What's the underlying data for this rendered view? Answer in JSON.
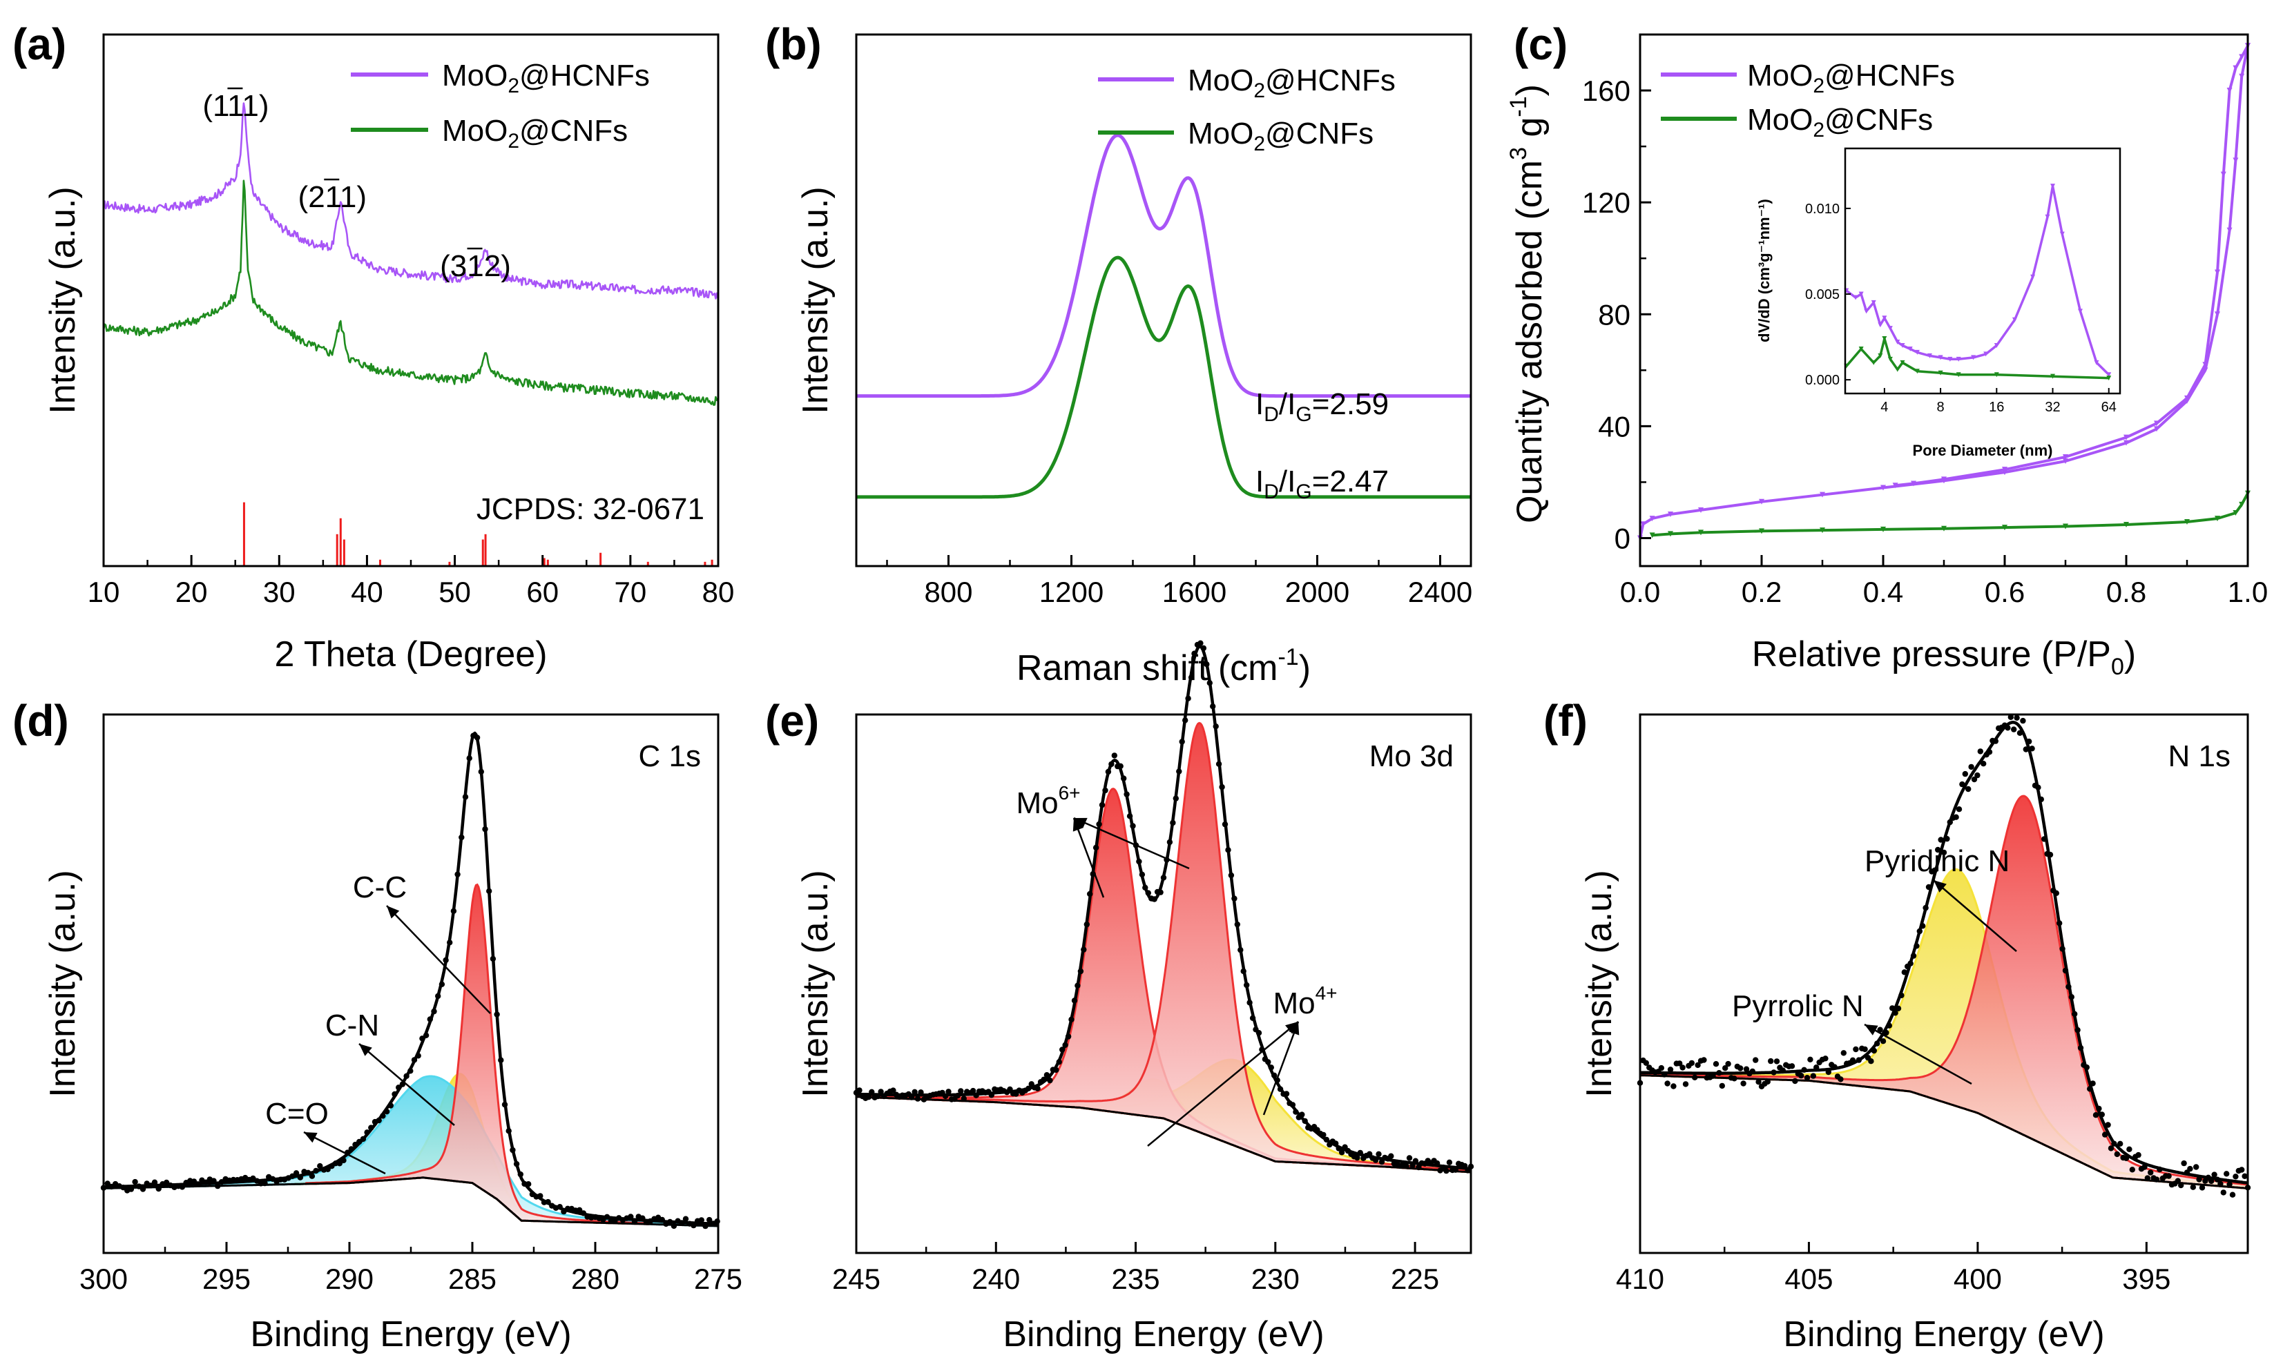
{
  "colors": {
    "hcnf": "#a855f7",
    "cnf": "#1e8c1e",
    "ref": "#ee1c1c",
    "fit_red": "#ee3333",
    "fit_yellow": "#f5e23a",
    "fit_cyan": "#52d8ee",
    "envelope": "#000000"
  },
  "chart_data": [
    {
      "id": "a",
      "type": "line",
      "panel_label": "(a)",
      "xlabel": "2 Theta (Degree)",
      "ylabel": "Intensity (a.u.)",
      "xlim": [
        10,
        80
      ],
      "ylim": [
        0,
        100
      ],
      "xticks": [
        10,
        20,
        30,
        40,
        50,
        60,
        70,
        80
      ],
      "legend": [
        "MoO2@HCNFs",
        "MoO2@CNFs"
      ],
      "peak_labels": [
        "(111)",
        "(211)",
        "(312)"
      ],
      "reference_label": "JCPDS: 32-0671",
      "series": [
        {
          "name": "MoO2@HCNFs",
          "x": [
            10,
            15,
            20,
            23,
            25,
            25.6,
            26,
            26.4,
            27,
            30,
            33,
            36,
            36.5,
            37,
            37.5,
            38,
            41,
            45,
            50,
            52,
            53,
            53.5,
            54,
            56,
            60,
            63,
            67,
            70,
            75,
            80
          ],
          "y": [
            68,
            67,
            68,
            70,
            73,
            78,
            88,
            78,
            70,
            64,
            61,
            60,
            64,
            69,
            64,
            59,
            56,
            55,
            54,
            55,
            57,
            60,
            57,
            54,
            53,
            53,
            52.5,
            52,
            52,
            51
          ]
        },
        {
          "name": "MoO2@CNFs",
          "x": [
            10,
            15,
            20,
            23,
            25,
            25.6,
            26,
            26.4,
            27,
            30,
            33,
            36,
            36.5,
            37,
            37.5,
            38,
            41,
            45,
            50,
            52,
            53,
            53.5,
            54,
            56,
            60,
            63,
            67,
            70,
            75,
            80
          ],
          "y": [
            45,
            44,
            46,
            48,
            51,
            56,
            74,
            56,
            50,
            45,
            42,
            40,
            43,
            46,
            42,
            39,
            37,
            36,
            35,
            35.5,
            37,
            40,
            37,
            35,
            34,
            33.5,
            33,
            32.5,
            32,
            31
          ]
        }
      ],
      "reference_peaks": [
        {
          "x": 26.0,
          "h": 12
        },
        {
          "x": 36.6,
          "h": 6
        },
        {
          "x": 37.0,
          "h": 9
        },
        {
          "x": 37.4,
          "h": 5
        },
        {
          "x": 41.5,
          "h": 1.2
        },
        {
          "x": 49.4,
          "h": 0.8
        },
        {
          "x": 53.2,
          "h": 5
        },
        {
          "x": 53.5,
          "h": 6
        },
        {
          "x": 60.2,
          "h": 1.5
        },
        {
          "x": 60.6,
          "h": 1.2
        },
        {
          "x": 66.6,
          "h": 2.5
        },
        {
          "x": 72.0,
          "h": 0.8
        },
        {
          "x": 78.5,
          "h": 0.8
        },
        {
          "x": 79.3,
          "h": 1.2
        }
      ]
    },
    {
      "id": "b",
      "type": "line",
      "panel_label": "(b)",
      "xlabel": "Raman shift (cm",
      "xlabel_sup": "-1",
      "xlabel_end": ")",
      "ylabel": "Intensity (a.u.)",
      "xlim": [
        500,
        2500
      ],
      "ylim": [
        0,
        100
      ],
      "xticks": [
        800,
        1200,
        1600,
        2000,
        2400
      ],
      "legend": [
        "MoO2@HCNFs",
        "MoO2@CNFs"
      ],
      "ratio_labels": [
        "I/I=2.59",
        "I/I=2.47"
      ],
      "ratio_values": [
        "2.59",
        "2.47"
      ],
      "series": [
        {
          "name": "MoO2@HCNFs",
          "baseline": 32,
          "peaks": [
            {
              "c": 1350,
              "h": 49,
              "w": 105
            },
            {
              "c": 1590,
              "h": 37,
              "w": 65
            }
          ]
        },
        {
          "name": "MoO2@CNFs",
          "baseline": 13,
          "peaks": [
            {
              "c": 1350,
              "h": 45,
              "w": 105
            },
            {
              "c": 1590,
              "h": 36,
              "w": 65
            }
          ]
        }
      ]
    },
    {
      "id": "c",
      "type": "line",
      "panel_label": "(c)",
      "xlabel": "Relative pressure (P/P",
      "xlabel_sub": "0",
      "xlabel_end": ")",
      "ylabel": "Quantity adsorbed (cm",
      "ylabel_sup": "3",
      "ylabel_mid": " g",
      "ylabel_sup2": "-1",
      "ylabel_end": ")",
      "xlim": [
        0,
        1.0
      ],
      "ylim": [
        -10,
        180
      ],
      "xticks": [
        "0.0",
        "0.2",
        "0.4",
        "0.6",
        "0.8",
        "1.0"
      ],
      "yticks": [
        0,
        40,
        80,
        120,
        160
      ],
      "legend": [
        "MoO2@HCNFs",
        "MoO2@CNFs"
      ],
      "series": [
        {
          "name": "MoO2@HCNFs adsorption",
          "x": [
            0.0,
            0.005,
            0.02,
            0.05,
            0.1,
            0.2,
            0.3,
            0.4,
            0.5,
            0.6,
            0.7,
            0.8,
            0.85,
            0.9,
            0.93,
            0.95,
            0.97,
            0.98,
            0.99,
            1.0
          ],
          "y": [
            0,
            5,
            7,
            8.5,
            10,
            13,
            15.5,
            18,
            20.5,
            23.5,
            27.5,
            34,
            39,
            49,
            60,
            80,
            110,
            135,
            165,
            176
          ]
        },
        {
          "name": "MoO2@HCNFs desorption",
          "x": [
            1.0,
            0.99,
            0.98,
            0.97,
            0.96,
            0.95,
            0.93,
            0.9,
            0.85,
            0.8,
            0.7,
            0.6,
            0.5,
            0.45,
            0.42
          ],
          "y": [
            176,
            172,
            168,
            160,
            130,
            95,
            62,
            50,
            41,
            36,
            29,
            24.5,
            21,
            19.5,
            18.8
          ]
        },
        {
          "name": "MoO2@CNFs",
          "x": [
            0.02,
            0.05,
            0.1,
            0.2,
            0.3,
            0.4,
            0.5,
            0.6,
            0.7,
            0.8,
            0.9,
            0.95,
            0.98,
            0.99,
            1.0
          ],
          "y": [
            1,
            1.5,
            2,
            2.5,
            2.8,
            3.1,
            3.4,
            3.8,
            4.2,
            4.8,
            5.8,
            7,
            9,
            12,
            16
          ]
        }
      ],
      "inset": {
        "xlabel": "Pore Diameter (nm)",
        "ylabel": "dV/dD (cm³g⁻¹nm⁻¹)",
        "xticks": [
          "4",
          "8",
          "16",
          "32",
          "64"
        ],
        "yticks": [
          "0.000",
          "0.005",
          "0.010"
        ],
        "xlim_log2": [
          1.3,
          6.2
        ],
        "ylim": [
          -0.0008,
          0.0135
        ],
        "series": [
          {
            "name": "MoO2@HCNFs",
            "x": [
              2.5,
              2.8,
              3,
              3.2,
              3.5,
              3.8,
              4,
              4.3,
              4.7,
              5,
              5.5,
              6,
              7,
              8,
              9,
              10,
              12,
              14,
              16,
              20,
              25,
              30,
              32,
              36,
              45,
              55,
              64
            ],
            "y": [
              0.0052,
              0.0048,
              0.005,
              0.004,
              0.0045,
              0.0032,
              0.0036,
              0.003,
              0.0022,
              0.002,
              0.0018,
              0.0016,
              0.0014,
              0.0013,
              0.0012,
              0.0012,
              0.0013,
              0.0015,
              0.002,
              0.0035,
              0.006,
              0.0095,
              0.0113,
              0.0085,
              0.004,
              0.001,
              0.0003
            ]
          },
          {
            "name": "MoO2@CNFs",
            "x": [
              2.5,
              3,
              3.5,
              3.8,
              4,
              4.3,
              4.7,
              5,
              6,
              8,
              10,
              16,
              32,
              64
            ],
            "y": [
              0.0008,
              0.0018,
              0.001,
              0.0014,
              0.0024,
              0.0012,
              0.0006,
              0.001,
              0.0005,
              0.0004,
              0.0003,
              0.0003,
              0.0002,
              0.0001
            ]
          }
        ]
      }
    },
    {
      "id": "d",
      "type": "line",
      "panel_label": "(d)",
      "title": "C 1s",
      "xlabel": "Binding Energy (eV)",
      "ylabel": "Intensity (a.u.)",
      "xlim": [
        300,
        275
      ],
      "ylim": [
        0,
        100
      ],
      "xticks": [
        300,
        295,
        290,
        285,
        280,
        275
      ],
      "annotations": [
        "C-C",
        "C-N",
        "C=O"
      ],
      "background": {
        "x": [
          300,
          290,
          287,
          285,
          284,
          283,
          275
        ],
        "y": [
          12,
          13,
          14,
          13,
          10,
          6,
          5
        ]
      },
      "components": [
        {
          "name": "C-C",
          "color": "fit_red",
          "center": 284.8,
          "height": 56,
          "width": 0.55
        },
        {
          "name": "C-N",
          "color": "fit_yellow",
          "center": 285.5,
          "height": 20,
          "width": 0.9
        },
        {
          "name": "C=O",
          "color": "fit_cyan",
          "center": 286.6,
          "height": 19,
          "width": 2.0
        }
      ]
    },
    {
      "id": "e",
      "type": "line",
      "panel_label": "(e)",
      "title": "Mo 3d",
      "xlabel": "Binding Energy (eV)",
      "ylabel": "Intensity (a.u.)",
      "xlim": [
        245,
        223
      ],
      "ylim": [
        0,
        100
      ],
      "xticks": [
        245,
        240,
        235,
        230,
        225
      ],
      "annotations": [
        "Mo",
        "Mo"
      ],
      "annotation_sups": [
        "6+",
        "4+"
      ],
      "background": {
        "x": [
          245,
          240,
          237,
          234,
          232,
          230,
          226,
          223
        ],
        "y": [
          29,
          28,
          27,
          25,
          21,
          17,
          16,
          15
        ]
      },
      "components": [
        {
          "name": "Mo6+ 3d3/2",
          "color": "fit_red",
          "center": 235.8,
          "height": 60,
          "width": 0.85
        },
        {
          "name": "Mo6+ 3d5/2",
          "color": "fit_red",
          "center": 232.7,
          "height": 76,
          "width": 0.85
        },
        {
          "name": "Mo4+ 3d3/2",
          "color": "fit_yellow",
          "center": 234.3,
          "height": 7,
          "width": 0.9
        },
        {
          "name": "Mo4+ 3d5/2",
          "color": "fit_yellow",
          "center": 231.3,
          "height": 16,
          "width": 1.6
        }
      ]
    },
    {
      "id": "f",
      "type": "line",
      "panel_label": "(f)",
      "title": "N 1s",
      "xlabel": "Binding Energy (eV)",
      "ylabel": "Intensity (a.u.)",
      "xlim": [
        410,
        392
      ],
      "ylim": [
        0,
        100
      ],
      "xticks": [
        410,
        405,
        400,
        395
      ],
      "annotations": [
        "Pyridinic N",
        "Pyrrolic N"
      ],
      "background": {
        "x": [
          410,
          405,
          402,
          400,
          398,
          396,
          392
        ],
        "y": [
          33,
          32,
          30,
          26,
          20,
          14,
          12
        ]
      },
      "components": [
        {
          "name": "Pyridinic N",
          "color": "fit_red",
          "center": 398.6,
          "height": 63,
          "width": 1.05
        },
        {
          "name": "Pyrrolic N",
          "color": "fit_yellow",
          "center": 400.6,
          "height": 44,
          "width": 1.15
        }
      ]
    }
  ]
}
